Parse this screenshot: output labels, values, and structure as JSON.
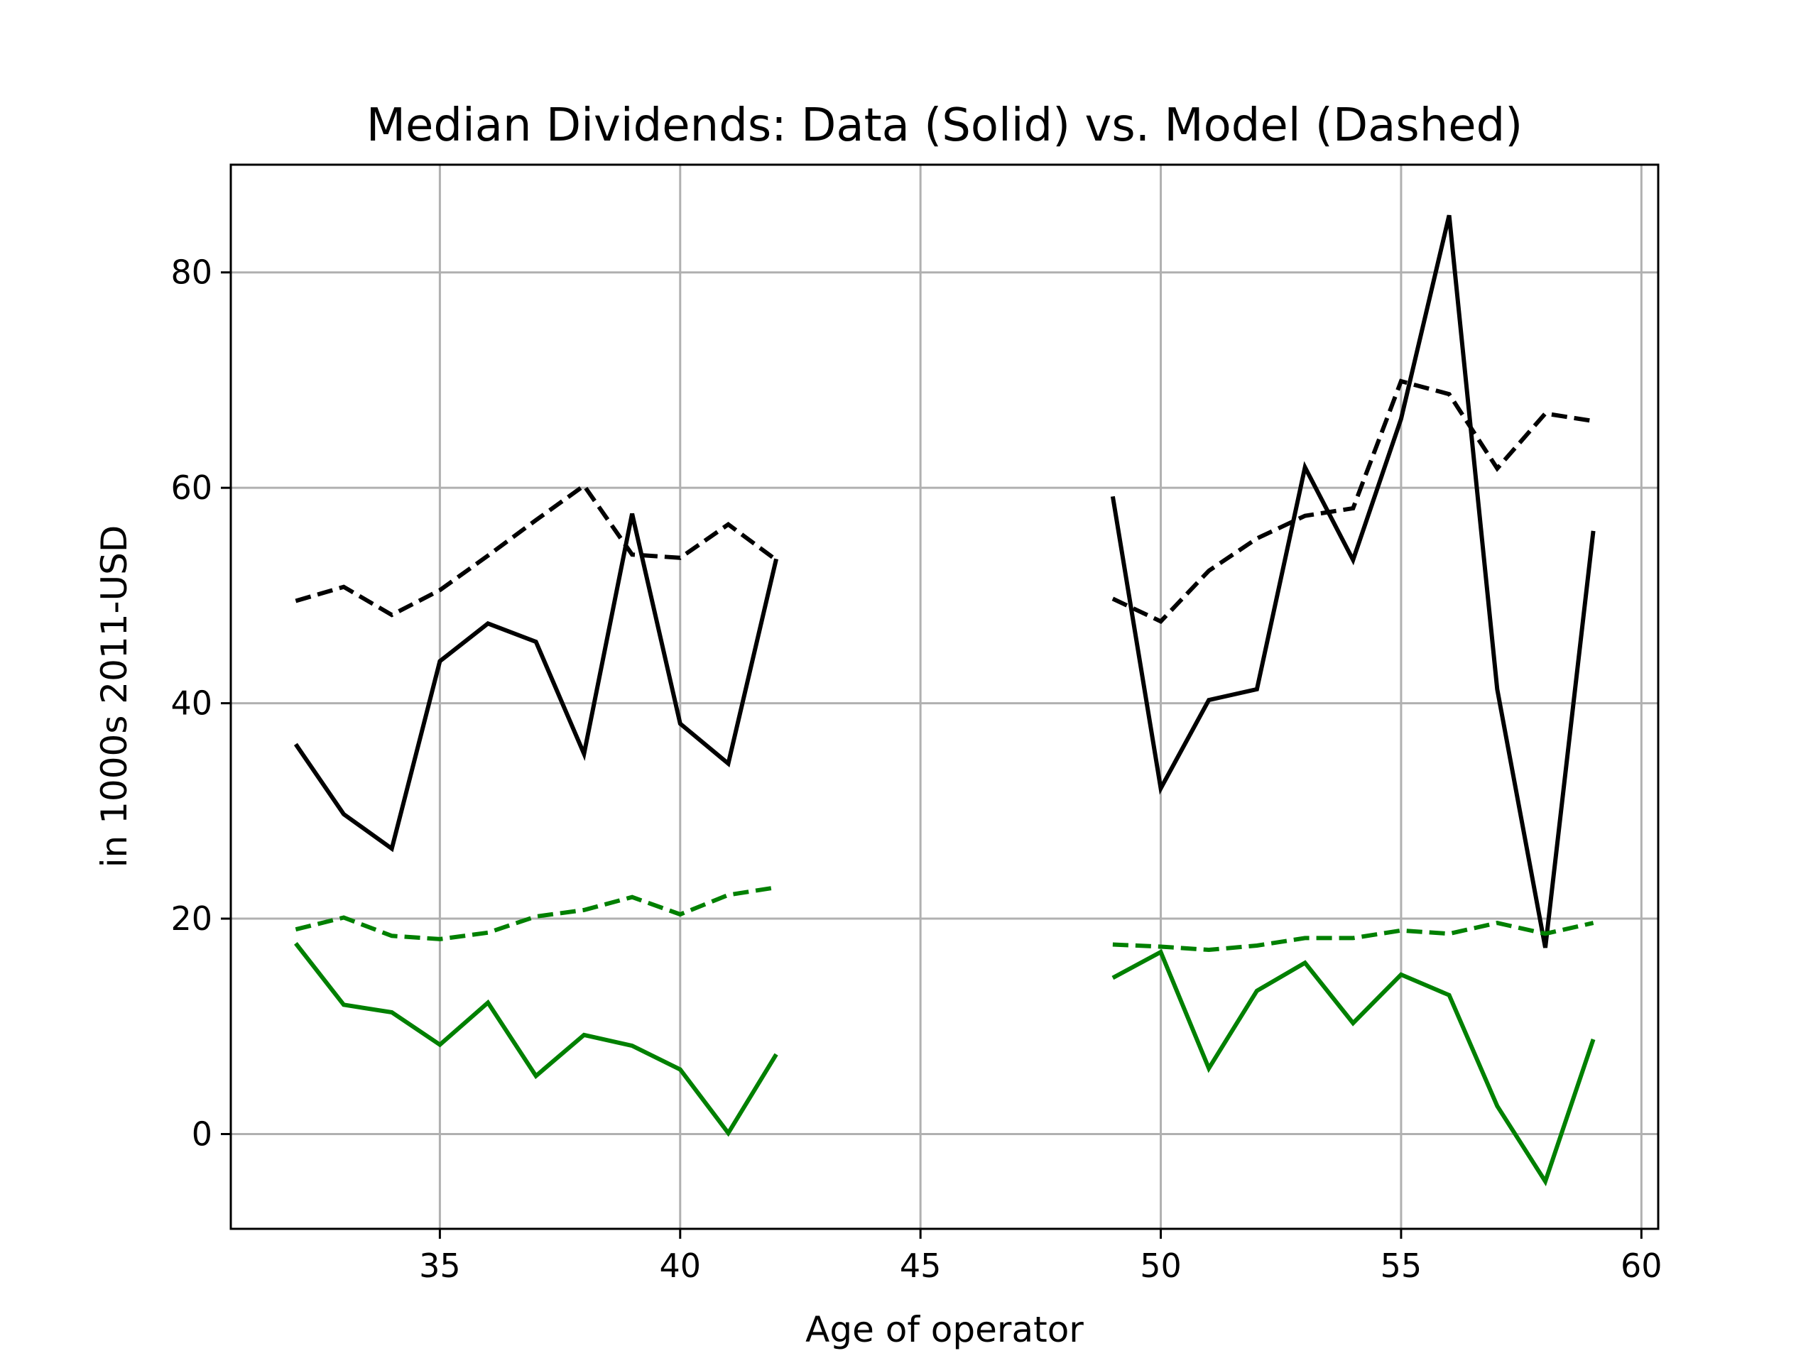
{
  "chart_data": {
    "type": "line",
    "title": "Median Dividends: Data (Solid) vs. Model (Dashed)",
    "xlabel": "Age of operator",
    "ylabel": "in 1000s 2011-USD",
    "xlim": [
      30.65,
      60.35
    ],
    "ylim": [
      -8.8,
      90.0
    ],
    "xticks": [
      35,
      40,
      45,
      50,
      55,
      60
    ],
    "yticks": [
      0,
      20,
      40,
      60,
      80
    ],
    "grid": true,
    "series": [
      {
        "color": "#000000",
        "style": "solid",
        "segments": [
          {
            "x": [
              32,
              33,
              34,
              35,
              36,
              37,
              38,
              39,
              40,
              41,
              42
            ],
            "y": [
              36.2,
              29.7,
              26.5,
              43.9,
              47.4,
              45.7,
              35.3,
              57.6,
              38.1,
              34.4,
              53.4
            ]
          },
          {
            "x": [
              49,
              50,
              51,
              52,
              53,
              54,
              55,
              56,
              57,
              58,
              59
            ],
            "y": [
              59.2,
              32.1,
              40.3,
              41.3,
              61.9,
              53.3,
              66.4,
              85.3,
              41.3,
              17.3,
              56.0
            ]
          }
        ]
      },
      {
        "color": "#000000",
        "style": "dashed",
        "segments": [
          {
            "x": [
              32,
              33,
              34,
              35,
              36,
              37,
              38,
              39,
              40,
              41,
              42
            ],
            "y": [
              49.5,
              50.8,
              48.2,
              50.5,
              53.7,
              57.0,
              60.2,
              53.8,
              53.5,
              56.6,
              53.3
            ]
          },
          {
            "x": [
              49,
              50,
              51,
              52,
              53,
              54,
              55,
              56,
              57,
              58,
              59
            ],
            "y": [
              49.7,
              47.6,
              52.3,
              55.3,
              57.4,
              58.1,
              69.9,
              68.7,
              61.8,
              66.9,
              66.2
            ]
          }
        ]
      },
      {
        "color": "#008000",
        "style": "solid",
        "segments": [
          {
            "x": [
              32,
              33,
              34,
              35,
              36,
              37,
              38,
              39,
              40,
              41,
              42
            ],
            "y": [
              17.7,
              12.0,
              11.3,
              8.3,
              12.2,
              5.4,
              9.2,
              8.2,
              6.0,
              0.1,
              7.4
            ]
          },
          {
            "x": [
              49,
              50,
              51,
              52,
              53,
              54,
              55,
              56,
              57,
              58,
              59
            ],
            "y": [
              14.5,
              16.9,
              6.1,
              13.3,
              15.9,
              10.3,
              14.8,
              12.9,
              2.6,
              -4.4,
              8.8
            ]
          }
        ]
      },
      {
        "color": "#008000",
        "style": "dashed",
        "segments": [
          {
            "x": [
              32,
              33,
              34,
              35,
              36,
              37,
              38,
              39,
              40,
              41,
              42
            ],
            "y": [
              19.0,
              20.1,
              18.4,
              18.1,
              18.7,
              20.2,
              20.8,
              22.0,
              20.4,
              22.2,
              22.9
            ]
          },
          {
            "x": [
              49,
              50,
              51,
              52,
              53,
              54,
              55,
              56,
              57,
              58,
              59
            ],
            "y": [
              17.6,
              17.4,
              17.1,
              17.5,
              18.2,
              18.2,
              18.9,
              18.6,
              19.6,
              18.6,
              19.6
            ]
          }
        ]
      }
    ]
  }
}
